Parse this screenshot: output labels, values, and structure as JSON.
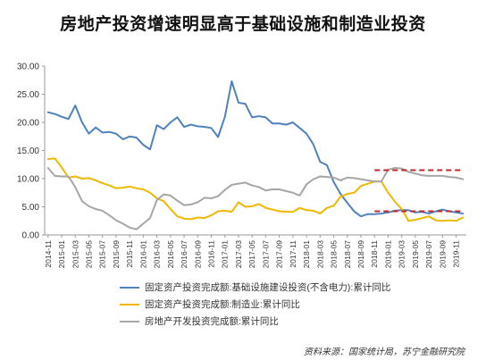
{
  "chart_data": {
    "type": "line",
    "title": "房地产投资增速明显高于基础设施和制造业投资",
    "xlabel": "",
    "ylabel": "",
    "ylim": [
      0,
      30
    ],
    "yticks": [
      "0.00",
      "5.00",
      "10.00",
      "15.00",
      "20.00",
      "25.00",
      "30.00"
    ],
    "xtick_labels": [
      "2014-11",
      "2015-01",
      "2015-03",
      "2015-05",
      "2015-07",
      "2015-09",
      "2015-11",
      "2016-01",
      "2016-03",
      "2016-05",
      "2016-07",
      "2016-09",
      "2016-11",
      "2017-01",
      "2017-03",
      "2017-05",
      "2017-07",
      "2017-09",
      "2017-11",
      "2018-01",
      "2018-03",
      "2018-05",
      "2018-07",
      "2018-09",
      "2018-11",
      "2019-01",
      "2019-03",
      "2019-05",
      "2019-07",
      "2019-09",
      "2019-11"
    ],
    "grid": false,
    "legend_position": "bottom",
    "series": [
      {
        "name": "固定资产投资完成额:基础设施建设投资(不含电力):累计同比",
        "color": "#4f81bd",
        "points": [
          [
            "2014-11",
            21.8
          ],
          [
            "2014-12",
            21.5
          ],
          [
            "2015-01",
            21.0
          ],
          [
            "2015-02",
            20.6
          ],
          [
            "2015-03",
            23.0
          ],
          [
            "2015-04",
            20.0
          ],
          [
            "2015-05",
            18.0
          ],
          [
            "2015-06",
            19.1
          ],
          [
            "2015-07",
            18.2
          ],
          [
            "2015-08",
            18.3
          ],
          [
            "2015-09",
            18.0
          ],
          [
            "2015-10",
            17.0
          ],
          [
            "2015-11",
            17.5
          ],
          [
            "2015-12",
            17.3
          ],
          [
            "2016-01",
            16.0
          ],
          [
            "2016-02",
            15.2
          ],
          [
            "2016-03",
            19.5
          ],
          [
            "2016-04",
            18.8
          ],
          [
            "2016-05",
            20.0
          ],
          [
            "2016-06",
            20.9
          ],
          [
            "2016-07",
            19.2
          ],
          [
            "2016-08",
            19.6
          ],
          [
            "2016-09",
            19.3
          ],
          [
            "2016-10",
            19.2
          ],
          [
            "2016-11",
            19.0
          ],
          [
            "2016-12",
            17.4
          ],
          [
            "2017-01",
            21.0
          ],
          [
            "2017-02",
            27.3
          ],
          [
            "2017-03",
            23.5
          ],
          [
            "2017-04",
            23.3
          ],
          [
            "2017-05",
            20.9
          ],
          [
            "2017-06",
            21.1
          ],
          [
            "2017-07",
            20.9
          ],
          [
            "2017-08",
            19.8
          ],
          [
            "2017-09",
            19.8
          ],
          [
            "2017-10",
            19.6
          ],
          [
            "2017-11",
            20.0
          ],
          [
            "2017-12",
            19.0
          ],
          [
            "2018-01",
            18.0
          ],
          [
            "2018-02",
            16.1
          ],
          [
            "2018-03",
            13.0
          ],
          [
            "2018-04",
            12.4
          ],
          [
            "2018-05",
            9.4
          ],
          [
            "2018-06",
            7.3
          ],
          [
            "2018-07",
            5.7
          ],
          [
            "2018-08",
            4.2
          ],
          [
            "2018-09",
            3.3
          ],
          [
            "2018-10",
            3.7
          ],
          [
            "2018-11",
            3.7
          ],
          [
            "2018-12",
            3.8
          ],
          [
            "2019-01",
            4.0
          ],
          [
            "2019-02",
            4.3
          ],
          [
            "2019-03",
            4.4
          ],
          [
            "2019-04",
            4.4
          ],
          [
            "2019-05",
            4.0
          ],
          [
            "2019-06",
            4.1
          ],
          [
            "2019-07",
            3.8
          ],
          [
            "2019-08",
            4.2
          ],
          [
            "2019-09",
            4.5
          ],
          [
            "2019-10",
            4.2
          ],
          [
            "2019-11",
            4.0
          ],
          [
            "2019-12",
            3.8
          ]
        ]
      },
      {
        "name": "固定资产投资完成额:制造业:累计同比",
        "color": "#f0b800",
        "points": [
          [
            "2014-11",
            13.5
          ],
          [
            "2014-12",
            13.6
          ],
          [
            "2015-01",
            12.0
          ],
          [
            "2015-02",
            10.2
          ],
          [
            "2015-03",
            10.4
          ],
          [
            "2015-04",
            10.0
          ],
          [
            "2015-05",
            10.1
          ],
          [
            "2015-06",
            9.7
          ],
          [
            "2015-07",
            9.2
          ],
          [
            "2015-08",
            8.8
          ],
          [
            "2015-09",
            8.3
          ],
          [
            "2015-10",
            8.4
          ],
          [
            "2015-11",
            8.6
          ],
          [
            "2015-12",
            8.3
          ],
          [
            "2016-01",
            8.1
          ],
          [
            "2016-02",
            7.5
          ],
          [
            "2016-03",
            6.5
          ],
          [
            "2016-04",
            6.0
          ],
          [
            "2016-05",
            4.6
          ],
          [
            "2016-06",
            3.3
          ],
          [
            "2016-07",
            2.9
          ],
          [
            "2016-08",
            2.8
          ],
          [
            "2016-09",
            3.1
          ],
          [
            "2016-10",
            3.0
          ],
          [
            "2016-11",
            3.5
          ],
          [
            "2016-12",
            4.2
          ],
          [
            "2017-01",
            4.3
          ],
          [
            "2017-02",
            4.1
          ],
          [
            "2017-03",
            5.8
          ],
          [
            "2017-04",
            5.0
          ],
          [
            "2017-05",
            5.1
          ],
          [
            "2017-06",
            5.5
          ],
          [
            "2017-07",
            4.8
          ],
          [
            "2017-08",
            4.5
          ],
          [
            "2017-09",
            4.2
          ],
          [
            "2017-10",
            4.1
          ],
          [
            "2017-11",
            4.1
          ],
          [
            "2017-12",
            4.8
          ],
          [
            "2018-01",
            4.4
          ],
          [
            "2018-02",
            4.3
          ],
          [
            "2018-03",
            3.8
          ],
          [
            "2018-04",
            4.8
          ],
          [
            "2018-05",
            5.2
          ],
          [
            "2018-06",
            6.8
          ],
          [
            "2018-07",
            7.3
          ],
          [
            "2018-08",
            7.5
          ],
          [
            "2018-09",
            8.7
          ],
          [
            "2018-10",
            9.1
          ],
          [
            "2018-11",
            9.5
          ],
          [
            "2018-12",
            9.5
          ],
          [
            "2019-01",
            7.5
          ],
          [
            "2019-02",
            5.9
          ],
          [
            "2019-03",
            4.6
          ],
          [
            "2019-04",
            2.5
          ],
          [
            "2019-05",
            2.7
          ],
          [
            "2019-06",
            3.0
          ],
          [
            "2019-07",
            3.3
          ],
          [
            "2019-08",
            2.6
          ],
          [
            "2019-09",
            2.5
          ],
          [
            "2019-10",
            2.6
          ],
          [
            "2019-11",
            2.5
          ],
          [
            "2019-12",
            3.1
          ]
        ]
      },
      {
        "name": "房地产开发投资完成额:累计同比",
        "color": "#a6a6a6",
        "points": [
          [
            "2014-11",
            11.9
          ],
          [
            "2014-12",
            10.5
          ],
          [
            "2015-01",
            10.4
          ],
          [
            "2015-02",
            10.4
          ],
          [
            "2015-03",
            8.5
          ],
          [
            "2015-04",
            6.0
          ],
          [
            "2015-05",
            5.1
          ],
          [
            "2015-06",
            4.6
          ],
          [
            "2015-07",
            4.3
          ],
          [
            "2015-08",
            3.5
          ],
          [
            "2015-09",
            2.6
          ],
          [
            "2015-10",
            2.0
          ],
          [
            "2015-11",
            1.3
          ],
          [
            "2015-12",
            1.0
          ],
          [
            "2016-01",
            2.0
          ],
          [
            "2016-02",
            3.0
          ],
          [
            "2016-03",
            6.2
          ],
          [
            "2016-04",
            7.2
          ],
          [
            "2016-05",
            7.0
          ],
          [
            "2016-06",
            6.1
          ],
          [
            "2016-07",
            5.3
          ],
          [
            "2016-08",
            5.4
          ],
          [
            "2016-09",
            5.8
          ],
          [
            "2016-10",
            6.6
          ],
          [
            "2016-11",
            6.5
          ],
          [
            "2016-12",
            6.9
          ],
          [
            "2017-01",
            8.0
          ],
          [
            "2017-02",
            8.9
          ],
          [
            "2017-03",
            9.1
          ],
          [
            "2017-04",
            9.3
          ],
          [
            "2017-05",
            8.8
          ],
          [
            "2017-06",
            8.5
          ],
          [
            "2017-07",
            7.9
          ],
          [
            "2017-08",
            8.1
          ],
          [
            "2017-09",
            8.1
          ],
          [
            "2017-10",
            7.8
          ],
          [
            "2017-11",
            7.5
          ],
          [
            "2017-12",
            7.0
          ],
          [
            "2018-01",
            9.0
          ],
          [
            "2018-02",
            9.9
          ],
          [
            "2018-03",
            10.4
          ],
          [
            "2018-04",
            10.3
          ],
          [
            "2018-05",
            10.2
          ],
          [
            "2018-06",
            9.7
          ],
          [
            "2018-07",
            10.2
          ],
          [
            "2018-08",
            10.1
          ],
          [
            "2018-09",
            9.9
          ],
          [
            "2018-10",
            9.7
          ],
          [
            "2018-11",
            9.5
          ],
          [
            "2018-12",
            9.5
          ],
          [
            "2019-01",
            11.6
          ],
          [
            "2019-02",
            11.9
          ],
          [
            "2019-03",
            11.8
          ],
          [
            "2019-04",
            11.2
          ],
          [
            "2019-05",
            10.9
          ],
          [
            "2019-06",
            10.6
          ],
          [
            "2019-07",
            10.5
          ],
          [
            "2019-08",
            10.5
          ],
          [
            "2019-09",
            10.5
          ],
          [
            "2019-10",
            10.3
          ],
          [
            "2019-11",
            10.2
          ],
          [
            "2019-12",
            9.9
          ]
        ]
      }
    ],
    "reference_lines": [
      {
        "color": "#c0282d",
        "style": "dashed",
        "y": 11.5,
        "x_from": "2018-11",
        "x_to": "2019-12"
      },
      {
        "color": "#c0282d",
        "style": "dashed",
        "y": 4.2,
        "x_from": "2018-11",
        "x_to": "2019-12"
      }
    ]
  },
  "source_note": "资料来源：国家统计局，苏宁金融研究院"
}
